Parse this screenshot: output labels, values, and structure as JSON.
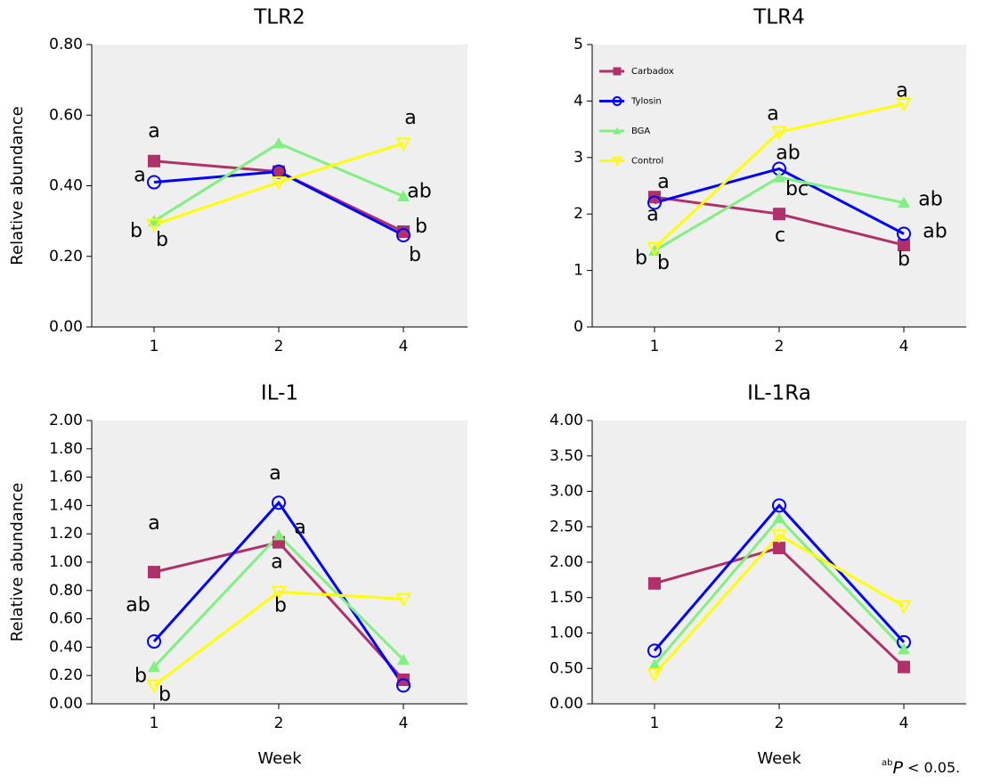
{
  "chart_data": [
    {
      "type": "line",
      "title": "TLR2",
      "y_label": "Relative abundance",
      "categories": [
        "1",
        "2",
        "4"
      ],
      "ylim": [
        0,
        0.8
      ],
      "yticks": [
        {
          "value": 0,
          "label": "0.00"
        },
        {
          "value": 0.2,
          "label": "0.20"
        },
        {
          "value": 0.4,
          "label": "0.40"
        },
        {
          "value": 0.6,
          "label": "0.60"
        },
        {
          "value": 0.8,
          "label": "0.80"
        }
      ],
      "grid": false,
      "series": [
        {
          "color": "#b0306a",
          "marker": "square",
          "values": [
            0.47,
            0.44,
            0.27
          ],
          "letters": [
            "a",
            null,
            "b"
          ]
        },
        {
          "color": "#0000ff",
          "marker": "circle",
          "values": [
            0.41,
            0.44,
            0.26
          ],
          "letters": [
            "a",
            null,
            "b"
          ]
        },
        {
          "color": "#80f080",
          "marker": "triangle-up",
          "values": [
            0.3,
            0.52,
            0.37
          ],
          "letters": [
            "b",
            null,
            "ab"
          ]
        },
        {
          "color": "#ffff00",
          "marker": "triangle-down",
          "values": [
            0.29,
            0.41,
            0.52
          ],
          "letters": [
            "b",
            null,
            "a"
          ]
        }
      ]
    },
    {
      "type": "line",
      "title": "TLR4",
      "categories": [
        "1",
        "2",
        "4"
      ],
      "ylim": [
        0,
        5
      ],
      "yticks": [
        0,
        1,
        2,
        3,
        4,
        5
      ],
      "grid": false,
      "legend": "upper left",
      "series": [
        {
          "name": "Carbadox",
          "color": "#b0306a",
          "marker": "square",
          "values": [
            2.3,
            2.0,
            1.45
          ],
          "letters": [
            "a",
            "c",
            "b"
          ]
        },
        {
          "name": "Tylosin",
          "color": "#0000ff",
          "marker": "circle",
          "values": [
            2.2,
            2.8,
            1.65
          ],
          "letters": [
            "a",
            "ab",
            "ab"
          ]
        },
        {
          "name": "BGA",
          "color": "#80f080",
          "marker": "triangle-up",
          "values": [
            1.35,
            2.65,
            2.2
          ],
          "letters": [
            "b",
            "bc",
            "ab"
          ]
        },
        {
          "name": "Control",
          "color": "#ffff00",
          "marker": "triangle-down",
          "values": [
            1.4,
            3.45,
            3.95
          ],
          "letters": [
            "b",
            "a",
            "a"
          ]
        }
      ]
    },
    {
      "type": "line",
      "title": "IL-1",
      "y_label": "Relative abundance",
      "x_label": "Week",
      "categories": [
        "1",
        "2",
        "4"
      ],
      "ylim": [
        0,
        2
      ],
      "yticks": [
        {
          "value": 0,
          "label": "0.00"
        },
        {
          "value": 0.2,
          "label": "0.20"
        },
        {
          "value": 0.4,
          "label": "0.40"
        },
        {
          "value": 0.6,
          "label": "0.60"
        },
        {
          "value": 0.8,
          "label": "0.80"
        },
        {
          "value": 1,
          "label": "1.00"
        },
        {
          "value": 1.2,
          "label": "1.20"
        },
        {
          "value": 1.4,
          "label": "1.40"
        },
        {
          "value": 1.6,
          "label": "1.60"
        },
        {
          "value": 1.8,
          "label": "1.80"
        },
        {
          "value": 2,
          "label": "2.00"
        }
      ],
      "grid": false,
      "series": [
        {
          "color": "#b0306a",
          "marker": "square",
          "values": [
            0.93,
            1.14,
            0.17
          ],
          "letters": [
            "a",
            "a",
            null
          ]
        },
        {
          "color": "#0000ff",
          "marker": "circle",
          "values": [
            0.44,
            1.42,
            0.13
          ],
          "letters": [
            "ab",
            "a",
            null
          ]
        },
        {
          "color": "#80f080",
          "marker": "triangle-up",
          "values": [
            0.26,
            1.19,
            0.31
          ],
          "letters": [
            "b",
            "a",
            null
          ]
        },
        {
          "color": "#ffff00",
          "marker": "triangle-down",
          "values": [
            0.13,
            0.79,
            0.74
          ],
          "letters": [
            "b",
            "b",
            null
          ]
        }
      ]
    },
    {
      "type": "line",
      "title": "IL-1Ra",
      "x_label": "Week",
      "categories": [
        "1",
        "2",
        "4"
      ],
      "ylim": [
        0,
        4
      ],
      "yticks": [
        {
          "value": 0,
          "label": "0.00"
        },
        {
          "value": 0.5,
          "label": "0.50"
        },
        {
          "value": 1,
          "label": "1.00"
        },
        {
          "value": 1.5,
          "label": "1.50"
        },
        {
          "value": 2,
          "label": "2.00"
        },
        {
          "value": 2.5,
          "label": "2.50"
        },
        {
          "value": 3,
          "label": "3.00"
        },
        {
          "value": 3.5,
          "label": "3.50"
        },
        {
          "value": 4,
          "label": "4.00"
        }
      ],
      "grid": false,
      "series": [
        {
          "color": "#b0306a",
          "marker": "square",
          "values": [
            1.7,
            2.2,
            0.52
          ]
        },
        {
          "color": "#0000ff",
          "marker": "circle",
          "values": [
            0.75,
            2.8,
            0.87
          ]
        },
        {
          "color": "#80f080",
          "marker": "triangle-up",
          "values": [
            0.55,
            2.62,
            0.77
          ]
        },
        {
          "color": "#ffff00",
          "marker": "triangle-down",
          "values": [
            0.42,
            2.38,
            1.38
          ]
        }
      ]
    }
  ],
  "footnote": {
    "superscript": "ab",
    "symbol": "P",
    "text": " < 0.05."
  }
}
